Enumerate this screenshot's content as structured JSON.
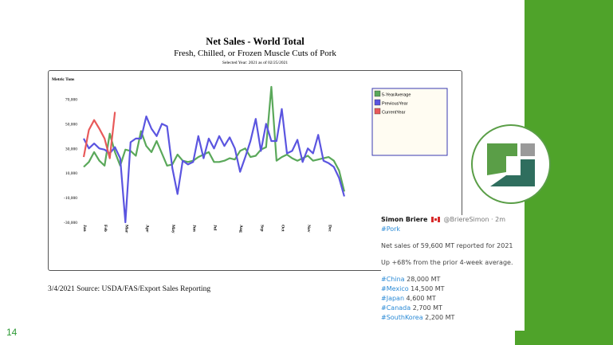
{
  "colors": {
    "accent_green": "#4fa32a",
    "five_year": "#5aa85a",
    "previous_year": "#5b55e0",
    "current_year": "#e85a5a",
    "tweet_link": "#2a8ad6",
    "page_number": "#2e9a36"
  },
  "page_number": "14",
  "source": "3/4/2021 Source: USDA/FAS/Export Sales Reporting",
  "tweet": {
    "name": "Simon Briere",
    "handle": "@BriereSimon · 2m",
    "hashtag": "#Pork",
    "line1": "Net sales of 59,600 MT reported for 2021",
    "line2": "Up +68% from the prior 4-week average.",
    "countries": [
      {
        "tag": "#China",
        "value": "28,000 MT"
      },
      {
        "tag": "#Mexico",
        "value": "14,500 MT"
      },
      {
        "tag": "#Japan",
        "value": "4,600 MT"
      },
      {
        "tag": "#Canada",
        "value": "2,700 MT"
      },
      {
        "tag": "#SouthKorea",
        "value": "2,200 MT"
      }
    ]
  },
  "logo": {
    "icon": "company-logo-icon"
  },
  "chart_data": {
    "type": "line",
    "title": "Net Sales - World Total",
    "subtitle": "Fresh, Chilled, or Frozen Muscle Cuts of Pork",
    "note": "Selected Year: 2021 as of 02/25/2021",
    "ylabel": "Metric Tons",
    "ylim": [
      -30000,
      80000
    ],
    "yticks": [
      -30000,
      -10000,
      10000,
      30000,
      50000,
      70000
    ],
    "ytick_labels": [
      "-30,000",
      "-10,000",
      "10,000",
      "30,000",
      "50,000",
      "70,000"
    ],
    "xlim": [
      0,
      52
    ],
    "xticks": [
      {
        "x": 0,
        "label": "Jan"
      },
      {
        "x": 4,
        "label": "Feb"
      },
      {
        "x": 8,
        "label": "Mar"
      },
      {
        "x": 12,
        "label": "Apr"
      },
      {
        "x": 17,
        "label": "May"
      },
      {
        "x": 21,
        "label": "Jun"
      },
      {
        "x": 25,
        "label": "Jul"
      },
      {
        "x": 30,
        "label": "Aug"
      },
      {
        "x": 34,
        "label": "Sep"
      },
      {
        "x": 38,
        "label": "Oct"
      },
      {
        "x": 43,
        "label": "Nov"
      },
      {
        "x": 47,
        "label": "Dec"
      }
    ],
    "legend_position": "top-right",
    "grid": false,
    "series": [
      {
        "name": "5-YearAverage",
        "color": "#5aa85a",
        "values": [
          15000,
          19000,
          27000,
          20000,
          16000,
          42000,
          27000,
          16000,
          29000,
          28000,
          24000,
          44000,
          32000,
          27000,
          36000,
          26000,
          16000,
          17000,
          25000,
          20000,
          19000,
          20000,
          23000,
          25000,
          27000,
          19000,
          19000,
          20000,
          22000,
          21000,
          28000,
          30000,
          23000,
          24000,
          29000,
          31000,
          80000,
          20000,
          23000,
          25000,
          22000,
          20000,
          22000,
          24000,
          20000,
          21000,
          22000,
          23000,
          20000,
          12000,
          -5000
        ]
      },
      {
        "name": "PreviousYear",
        "color": "#5b55e0",
        "values": [
          38000,
          30000,
          34000,
          30000,
          29000,
          26000,
          31000,
          22000,
          -30000,
          35000,
          38000,
          38000,
          56000,
          46000,
          40000,
          50000,
          48000,
          14000,
          -7000,
          20000,
          17000,
          19000,
          40000,
          22000,
          38000,
          30000,
          40000,
          32000,
          39000,
          30000,
          11000,
          23000,
          36000,
          54000,
          28000,
          50000,
          36000,
          36000,
          62000,
          26000,
          28000,
          37000,
          19000,
          30000,
          26000,
          41000,
          20000,
          18000,
          15000,
          6000,
          -9000
        ]
      },
      {
        "name": "CurrentYear",
        "color": "#e85a5a",
        "values": [
          23000,
          45000,
          53000,
          46000,
          38000,
          22000,
          59600
        ]
      }
    ]
  }
}
